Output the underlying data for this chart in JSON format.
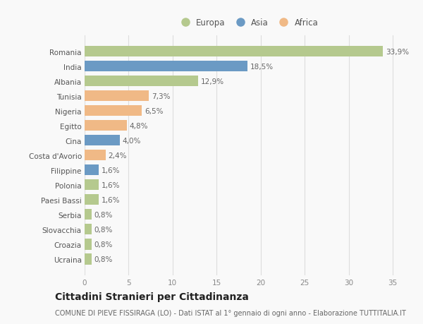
{
  "countries": [
    "Romania",
    "India",
    "Albania",
    "Tunisia",
    "Nigeria",
    "Egitto",
    "Cina",
    "Costa d'Avorio",
    "Filippine",
    "Polonia",
    "Paesi Bassi",
    "Serbia",
    "Slovacchia",
    "Croazia",
    "Ucraina"
  ],
  "values": [
    33.9,
    18.5,
    12.9,
    7.3,
    6.5,
    4.8,
    4.0,
    2.4,
    1.6,
    1.6,
    1.6,
    0.8,
    0.8,
    0.8,
    0.8
  ],
  "labels": [
    "33,9%",
    "18,5%",
    "12,9%",
    "7,3%",
    "6,5%",
    "4,8%",
    "4,0%",
    "2,4%",
    "1,6%",
    "1,6%",
    "1,6%",
    "0,8%",
    "0,8%",
    "0,8%",
    "0,8%"
  ],
  "continents": [
    "Europa",
    "Asia",
    "Europa",
    "Africa",
    "Africa",
    "Africa",
    "Asia",
    "Africa",
    "Asia",
    "Europa",
    "Europa",
    "Europa",
    "Europa",
    "Europa",
    "Europa"
  ],
  "colors": {
    "Europa": "#b5c98e",
    "Asia": "#6b9ac4",
    "Africa": "#f0b986"
  },
  "title": "Cittadini Stranieri per Cittadinanza",
  "subtitle": "COMUNE DI PIEVE FISSIRAGA (LO) - Dati ISTAT al 1° gennaio di ogni anno - Elaborazione TUTTITALIA.IT",
  "xlim": [
    0,
    37
  ],
  "xticks": [
    0,
    5,
    10,
    15,
    20,
    25,
    30,
    35
  ],
  "background_color": "#f9f9f9",
  "grid_color": "#dddddd",
  "title_fontsize": 10,
  "subtitle_fontsize": 7,
  "label_fontsize": 7.5,
  "tick_fontsize": 7.5,
  "legend_fontsize": 8.5
}
